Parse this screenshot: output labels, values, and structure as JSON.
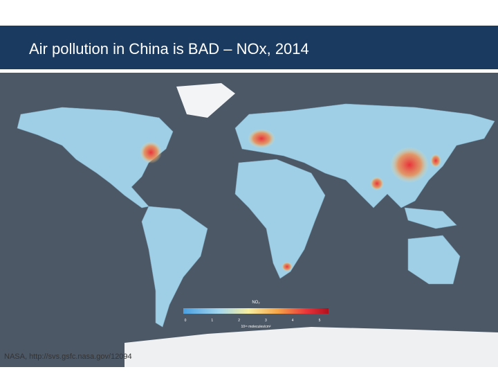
{
  "header": {
    "title": "Air pollution in China is BAD – NOx, 2014"
  },
  "legend": {
    "title": "NO₂",
    "ticks": [
      "0",
      "1",
      "2",
      "3",
      "4",
      "5"
    ],
    "unit": "10¹⁵ molecules/cm²"
  },
  "caption": "NASA, http://svs.gsfc.nasa.gov/12094"
}
